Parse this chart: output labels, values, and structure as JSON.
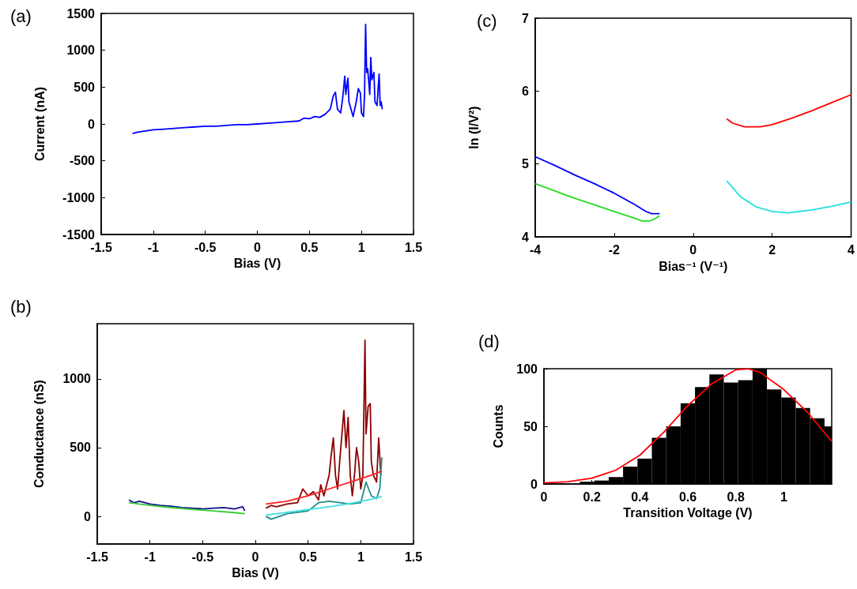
{
  "chart_data": [
    {
      "type": "line",
      "title": "(a)",
      "xlabel": "Bias (V)",
      "ylabel": "Current (nA)",
      "xlim": [
        -1.5,
        1.5
      ],
      "xticks": [
        -1.5,
        -1,
        -0.5,
        0,
        0.5,
        1,
        1.5
      ],
      "ylim": [
        -1500,
        1500
      ],
      "yticks": [
        -1500,
        -1000,
        -500,
        0,
        500,
        1000,
        1500
      ],
      "grid": false,
      "marker": "none",
      "series": [
        {
          "color": "#0000ff",
          "x": [
            -1.2,
            -1.15,
            -1.1,
            -1.0,
            -0.9,
            -0.8,
            -0.7,
            -0.6,
            -0.5,
            -0.4,
            -0.3,
            -0.2,
            -0.1,
            0,
            0.1,
            0.2,
            0.3,
            0.4,
            0.45,
            0.5,
            0.55,
            0.6,
            0.65,
            0.7,
            0.73,
            0.75,
            0.77,
            0.8,
            0.82,
            0.84,
            0.85,
            0.87,
            0.88,
            0.9,
            0.92,
            0.95,
            0.97,
            0.99,
            1.0,
            1.02,
            1.03,
            1.04,
            1.05,
            1.06,
            1.08,
            1.09,
            1.1,
            1.12,
            1.13,
            1.15,
            1.17,
            1.18,
            1.19,
            1.2
          ],
          "values": [
            -130,
            -110,
            -100,
            -80,
            -70,
            -60,
            -50,
            -40,
            -30,
            -30,
            -20,
            -10,
            -10,
            0,
            10,
            20,
            30,
            40,
            80,
            70,
            100,
            90,
            130,
            200,
            380,
            430,
            200,
            150,
            350,
            650,
            400,
            620,
            300,
            200,
            100,
            300,
            480,
            420,
            150,
            100,
            400,
            1350,
            700,
            750,
            400,
            900,
            600,
            700,
            300,
            250,
            680,
            250,
            300,
            200
          ]
        }
      ]
    },
    {
      "type": "line",
      "title": "(c)",
      "xlabel": "Bias⁻¹ (V⁻¹)",
      "ylabel": "ln (I/V²)",
      "xlim": [
        -4,
        4
      ],
      "xticks": [
        -4,
        -2,
        0,
        2,
        4
      ],
      "ylim": [
        4,
        7
      ],
      "yticks": [
        4,
        5,
        6,
        7
      ],
      "grid": false,
      "marker": "none",
      "series": [
        {
          "color": "#0000ff",
          "x": [
            -4,
            -3.5,
            -3,
            -2.5,
            -2,
            -1.5,
            -1.2,
            -1.05,
            -0.85
          ],
          "values": [
            5.1,
            4.98,
            4.85,
            4.73,
            4.6,
            4.45,
            4.35,
            4.32,
            4.32
          ]
        },
        {
          "color": "#22dd22",
          "x": [
            -4,
            -3.5,
            -3,
            -2.5,
            -2,
            -1.5,
            -1.3,
            -1.1,
            -1.0,
            -0.85
          ],
          "values": [
            4.73,
            4.63,
            4.53,
            4.44,
            4.35,
            4.26,
            4.22,
            4.22,
            4.24,
            4.29
          ]
        },
        {
          "color": "#ff0000",
          "x": [
            0.85,
            1.0,
            1.3,
            1.7,
            2.0,
            2.5,
            3.0,
            3.5,
            4.0
          ],
          "values": [
            5.62,
            5.56,
            5.51,
            5.51,
            5.54,
            5.63,
            5.73,
            5.84,
            5.95
          ]
        },
        {
          "color": "#22e0e0",
          "x": [
            0.85,
            1.2,
            1.6,
            2.0,
            2.4,
            3.0,
            3.5,
            4.0
          ],
          "values": [
            4.77,
            4.55,
            4.41,
            4.35,
            4.33,
            4.37,
            4.42,
            4.48
          ]
        }
      ]
    },
    {
      "type": "line",
      "title": "(b)",
      "xlabel": "Bias (V)",
      "ylabel": "Conductance (nS)",
      "xlim": [
        -1.5,
        1.5
      ],
      "xticks": [
        -1.5,
        -1,
        -0.5,
        0,
        0.5,
        1,
        1.5
      ],
      "ylim": [
        -200,
        1400
      ],
      "yticks": [
        0,
        500,
        1000
      ],
      "grid": false,
      "marker": "none",
      "series": [
        {
          "color": "#10108c",
          "x": [
            -1.2,
            -1.15,
            -1.1,
            -1.0,
            -0.9,
            -0.8,
            -0.7,
            -0.6,
            -0.5,
            -0.4,
            -0.3,
            -0.2,
            -0.12,
            -0.1
          ],
          "values": [
            120,
            100,
            110,
            90,
            80,
            75,
            65,
            60,
            55,
            60,
            65,
            55,
            70,
            40
          ]
        },
        {
          "color": "#8b0000",
          "x": [
            0.1,
            0.15,
            0.2,
            0.3,
            0.4,
            0.45,
            0.5,
            0.55,
            0.6,
            0.62,
            0.65,
            0.7,
            0.72,
            0.74,
            0.76,
            0.78,
            0.8,
            0.84,
            0.86,
            0.88,
            0.9,
            0.92,
            0.94,
            0.96,
            0.98,
            1.0,
            1.02,
            1.04,
            1.05,
            1.07,
            1.09,
            1.1,
            1.12,
            1.15,
            1.17,
            1.19
          ],
          "values": [
            60,
            80,
            70,
            90,
            100,
            200,
            150,
            180,
            120,
            230,
            150,
            300,
            450,
            570,
            300,
            200,
            400,
            770,
            500,
            720,
            300,
            150,
            300,
            500,
            400,
            200,
            300,
            1280,
            600,
            800,
            820,
            400,
            300,
            250,
            570,
            300
          ]
        },
        {
          "color": "#208c8c",
          "x": [
            0.1,
            0.15,
            0.3,
            0.5,
            0.6,
            0.7,
            0.8,
            0.9,
            1.0,
            1.05,
            1.1,
            1.15,
            1.18,
            1.2
          ],
          "values": [
            0,
            -20,
            20,
            40,
            100,
            110,
            100,
            90,
            100,
            250,
            150,
            130,
            200,
            430
          ]
        },
        {
          "color": "#33cc33",
          "x": [
            -1.2,
            -1.0,
            -0.8,
            -0.6,
            -0.4,
            -0.2,
            -0.1
          ],
          "values": [
            100,
            80,
            65,
            52,
            40,
            28,
            20
          ]
        },
        {
          "color": "#ff2020",
          "x": [
            0.1,
            0.3,
            0.5,
            0.7,
            0.9,
            1.1,
            1.2
          ],
          "values": [
            90,
            110,
            150,
            200,
            250,
            300,
            330
          ]
        },
        {
          "color": "#40e0e0",
          "x": [
            0.1,
            0.3,
            0.5,
            0.7,
            0.9,
            1.1,
            1.2
          ],
          "values": [
            10,
            30,
            50,
            70,
            95,
            125,
            145
          ]
        }
      ]
    },
    {
      "type": "histogram",
      "title": "(d)",
      "xlabel": "Transition Voltage (V)",
      "ylabel": "Counts",
      "xlim": [
        0,
        1.2
      ],
      "xticks": [
        0,
        0.2,
        0.4,
        0.6,
        0.8,
        1
      ],
      "ylim": [
        0,
        100
      ],
      "yticks": [
        0,
        50,
        100
      ],
      "grid": false,
      "color": "#000000",
      "bins": [
        0.15,
        0.21,
        0.27,
        0.33,
        0.39,
        0.45,
        0.51,
        0.57,
        0.63,
        0.69,
        0.75,
        0.81,
        0.87,
        0.93,
        0.99,
        1.05,
        1.11,
        1.17,
        1.2
      ],
      "values": [
        2,
        3,
        6,
        15,
        22,
        40,
        50,
        70,
        84,
        95,
        88,
        90,
        100,
        82,
        75,
        66,
        57,
        50
      ],
      "series": [
        {
          "type": "line",
          "color": "#ff0000",
          "x": [
            0,
            0.1,
            0.2,
            0.3,
            0.4,
            0.5,
            0.6,
            0.7,
            0.8,
            0.85,
            0.9,
            1.0,
            1.1,
            1.2
          ],
          "values": [
            1,
            2,
            5,
            12,
            25,
            45,
            68,
            87,
            99,
            100,
            97,
            82,
            62,
            37
          ]
        }
      ]
    }
  ]
}
